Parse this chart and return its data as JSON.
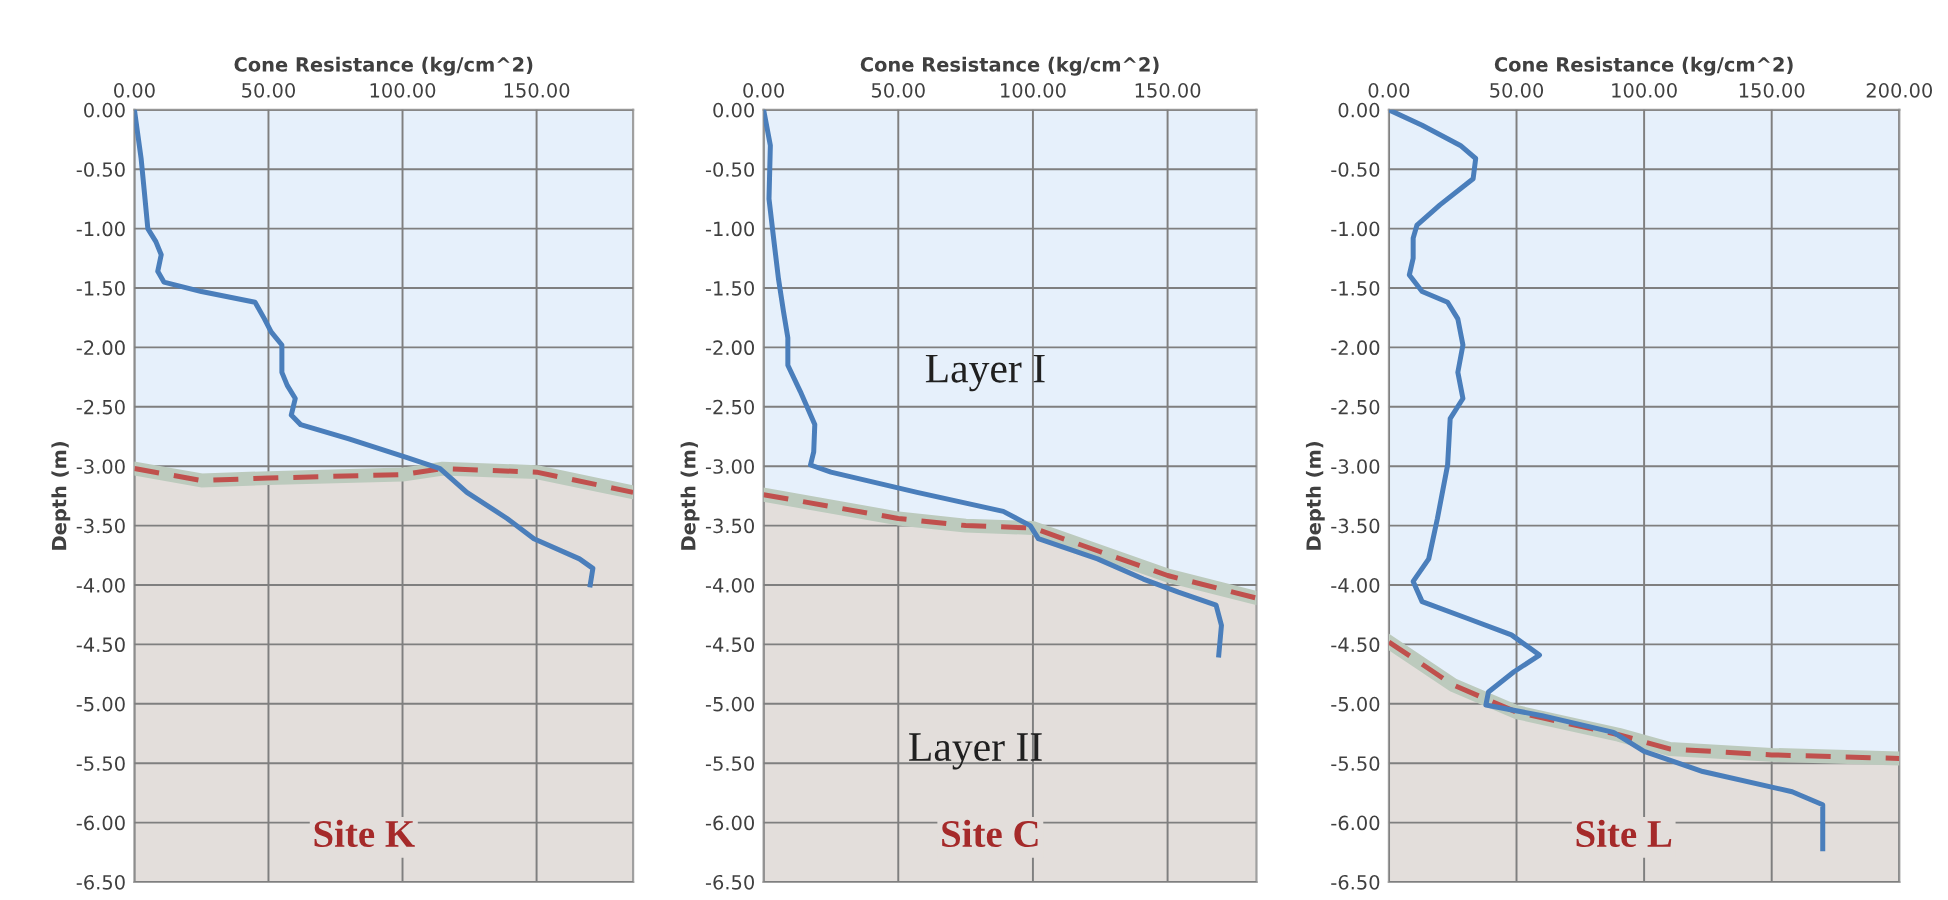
{
  "chart_data": [
    {
      "type": "line",
      "xlabel": "Cone Resistance (kg/cm^2)",
      "ylabel": "Depth (m)",
      "xlim": [
        0,
        186
      ],
      "ylim": [
        -6.5,
        0
      ],
      "xticks": [
        {
          "value": 0,
          "label": "0.00"
        },
        {
          "value": 50,
          "label": "50.00"
        },
        {
          "value": 100,
          "label": "100.00"
        },
        {
          "value": 150,
          "label": "150.00"
        }
      ],
      "yticks": [
        {
          "value": 0,
          "label": "0.00"
        },
        {
          "value": -0.5,
          "label": "-0.50"
        },
        {
          "value": -1,
          "label": "-1.00"
        },
        {
          "value": -1.5,
          "label": "-1.50"
        },
        {
          "value": -2,
          "label": "-2.00"
        },
        {
          "value": -2.5,
          "label": "-2.50"
        },
        {
          "value": -3,
          "label": "-3.00"
        },
        {
          "value": -3.5,
          "label": "-3.50"
        },
        {
          "value": -4,
          "label": "-4.00"
        },
        {
          "value": -4.5,
          "label": "-4.50"
        },
        {
          "value": -5,
          "label": "-5.00"
        },
        {
          "value": -5.5,
          "label": "-5.50"
        },
        {
          "value": -6,
          "label": "-6.00"
        },
        {
          "value": -6.5,
          "label": "-6.50"
        }
      ],
      "grid": true,
      "annotations": [
        "Site K"
      ],
      "series": [
        {
          "type": "area",
          "color": "#c0504d",
          "line_style": "dashed",
          "x": [
            0,
            25,
            50,
            100,
            115,
            150,
            186
          ],
          "values": [
            -3.02,
            -3.12,
            -3.1,
            -3.07,
            -3.02,
            -3.05,
            -3.22
          ]
        },
        {
          "color": "#4a7ebb",
          "x": [
            0,
            2.5,
            3.7,
            5,
            8,
            10,
            8.7,
            11,
            25,
            45,
            48.5,
            51,
            55,
            55,
            57,
            60,
            58.5,
            62,
            80,
            102,
            114,
            124,
            139,
            149,
            166,
            171,
            170
          ],
          "values": [
            0,
            -0.41,
            -0.69,
            -1.0,
            -1.11,
            -1.22,
            -1.36,
            -1.45,
            -1.53,
            -1.62,
            -1.76,
            -1.87,
            -1.98,
            -2.21,
            -2.32,
            -2.43,
            -2.57,
            -2.65,
            -2.77,
            -2.93,
            -3.02,
            -3.22,
            -3.44,
            -3.61,
            -3.78,
            -3.86,
            -4.0
          ]
        }
      ]
    },
    {
      "type": "line",
      "xlabel": "Cone Resistance (kg/cm^2)",
      "ylabel": "Depth (m)",
      "xlim": [
        0,
        183
      ],
      "ylim": [
        -6.5,
        0
      ],
      "xticks": [
        {
          "value": 0,
          "label": "0.00"
        },
        {
          "value": 50,
          "label": "50.00"
        },
        {
          "value": 100,
          "label": "100.00"
        },
        {
          "value": 150,
          "label": "150.00"
        }
      ],
      "yticks": [
        {
          "value": 0,
          "label": "0.00"
        },
        {
          "value": -0.5,
          "label": "-0.50"
        },
        {
          "value": -1,
          "label": "-1.00"
        },
        {
          "value": -1.5,
          "label": "-1.50"
        },
        {
          "value": -2,
          "label": "-2.00"
        },
        {
          "value": -2.5,
          "label": "-2.50"
        },
        {
          "value": -3,
          "label": "-3.00"
        },
        {
          "value": -3.5,
          "label": "-3.50"
        },
        {
          "value": -4,
          "label": "-4.00"
        },
        {
          "value": -4.5,
          "label": "-4.50"
        },
        {
          "value": -5,
          "label": "-5.00"
        },
        {
          "value": -5.5,
          "label": "-5.50"
        },
        {
          "value": -6,
          "label": "-6.00"
        },
        {
          "value": -6.5,
          "label": "-6.50"
        }
      ],
      "grid": true,
      "annotations": [
        "Layer I",
        "Layer II",
        "Site C"
      ],
      "series": [
        {
          "type": "area",
          "color": "#c0504d",
          "line_style": "dashed",
          "x": [
            0,
            50,
            75,
            100,
            125,
            150,
            183
          ],
          "values": [
            -3.24,
            -3.44,
            -3.5,
            -3.52,
            -3.72,
            -3.92,
            -4.11
          ]
        },
        {
          "color": "#4a7ebb",
          "x": [
            0,
            2.5,
            2,
            3.7,
            5.5,
            7.4,
            9,
            9,
            13.6,
            19,
            18.6,
            17.4,
            25,
            57,
            89,
            99,
            102,
            124,
            141,
            154,
            168,
            170,
            169
          ],
          "values": [
            0,
            -0.3,
            -0.75,
            -1.08,
            -1.42,
            -1.7,
            -1.92,
            -2.15,
            -2.37,
            -2.65,
            -2.88,
            -2.99,
            -3.05,
            -3.22,
            -3.38,
            -3.5,
            -3.61,
            -3.78,
            -3.95,
            -4.06,
            -4.17,
            -4.34,
            -4.59
          ]
        }
      ]
    },
    {
      "type": "line",
      "xlabel": "Cone Resistance (kg/cm^2)",
      "ylabel": "Depth (m)",
      "xlim": [
        0,
        200
      ],
      "ylim": [
        -6.5,
        0
      ],
      "xticks": [
        {
          "value": 0,
          "label": "0.00"
        },
        {
          "value": 50,
          "label": "50.00"
        },
        {
          "value": 100,
          "label": "100.00"
        },
        {
          "value": 150,
          "label": "150.00"
        },
        {
          "value": 200,
          "label": "200.00"
        }
      ],
      "yticks": [
        {
          "value": 0,
          "label": "0.00"
        },
        {
          "value": -0.5,
          "label": "-0.50"
        },
        {
          "value": -1,
          "label": "-1.00"
        },
        {
          "value": -1.5,
          "label": "-1.50"
        },
        {
          "value": -2,
          "label": "-2.00"
        },
        {
          "value": -2.5,
          "label": "-2.50"
        },
        {
          "value": -3,
          "label": "-3.00"
        },
        {
          "value": -3.5,
          "label": "-3.50"
        },
        {
          "value": -4,
          "label": "-4.00"
        },
        {
          "value": -4.5,
          "label": "-4.50"
        },
        {
          "value": -5,
          "label": "-5.00"
        },
        {
          "value": -5.5,
          "label": "-5.50"
        },
        {
          "value": -6,
          "label": "-6.00"
        },
        {
          "value": -6.5,
          "label": "-6.50"
        }
      ],
      "grid": true,
      "annotations": [
        "Site L"
      ],
      "series": [
        {
          "type": "area",
          "color": "#c0504d",
          "line_style": "dashed",
          "x": [
            0,
            25,
            50,
            90,
            110,
            150,
            200
          ],
          "values": [
            -4.48,
            -4.84,
            -5.07,
            -5.26,
            -5.38,
            -5.43,
            -5.46
          ]
        },
        {
          "color": "#4a7ebb",
          "x": [
            0,
            13,
            28,
            34,
            33,
            20,
            11,
            9.5,
            9.5,
            8,
            13,
            23,
            27,
            29,
            27,
            29,
            24,
            23,
            19,
            15.6,
            9.5,
            13,
            30.6,
            48,
            59,
            49,
            39,
            38,
            60,
            88,
            100,
            123,
            158,
            170,
            170,
            170
          ],
          "values": [
            0,
            -0.13,
            -0.3,
            -0.41,
            -0.58,
            -0.8,
            -0.97,
            -1.08,
            -1.25,
            -1.39,
            -1.53,
            -1.62,
            -1.76,
            -1.98,
            -2.21,
            -2.43,
            -2.6,
            -2.99,
            -3.44,
            -3.78,
            -3.97,
            -4.14,
            -4.28,
            -4.42,
            -4.59,
            -4.73,
            -4.9,
            -5.01,
            -5.1,
            -5.24,
            -5.4,
            -5.57,
            -5.74,
            -5.85,
            -6.02,
            -6.22
          ]
        }
      ]
    }
  ]
}
